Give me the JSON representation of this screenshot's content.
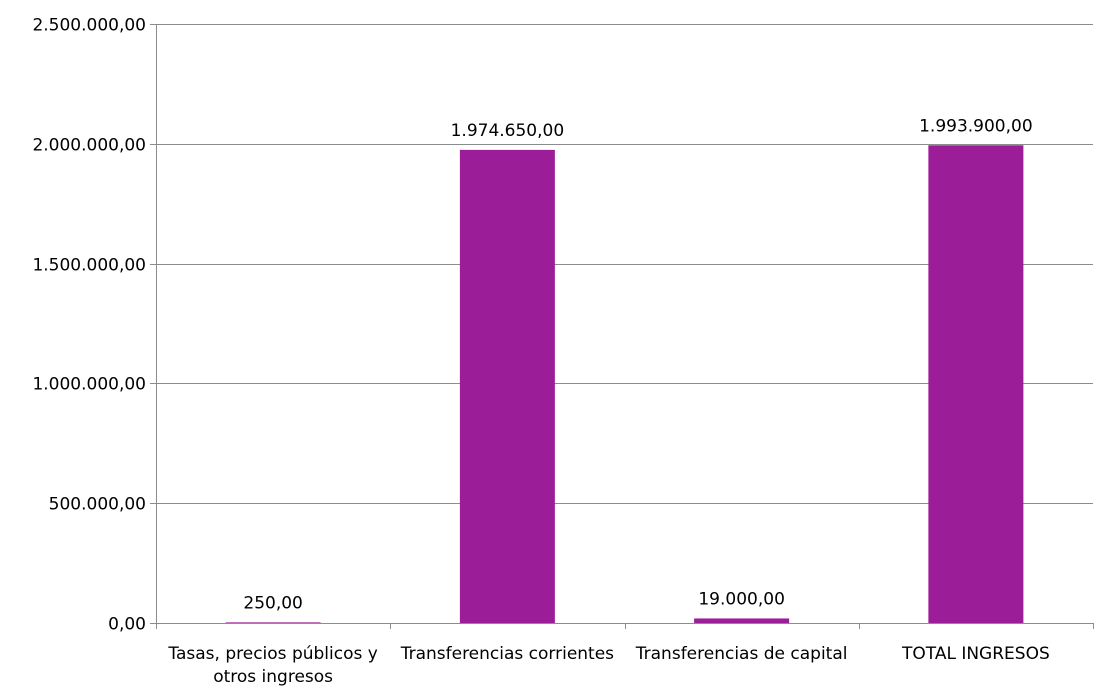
{
  "chart_data": {
    "type": "bar",
    "title": "",
    "xlabel": "",
    "ylabel": "",
    "categories": [
      [
        "Tasas, precios públicos y",
        "otros ingresos"
      ],
      [
        "Transferencias corrientes"
      ],
      [
        "Transferencias de capital"
      ],
      [
        "TOTAL INGRESOS"
      ]
    ],
    "values": [
      250,
      1974650,
      19000,
      1993900
    ],
    "value_labels": [
      "250,00",
      "1.974.650,00",
      "19.000,00",
      "1.993.900,00"
    ],
    "ylim": [
      0,
      2500000
    ],
    "yticks": [
      0,
      500000,
      1000000,
      1500000,
      2000000,
      2500000
    ],
    "ytick_labels": [
      "0,00",
      "500.000,00",
      "1.000.000,00",
      "1.500.000,00",
      "2.000.000,00",
      "2.500.000,00"
    ],
    "grid": true,
    "legend": "none",
    "bar_color": "#9b1d97"
  }
}
